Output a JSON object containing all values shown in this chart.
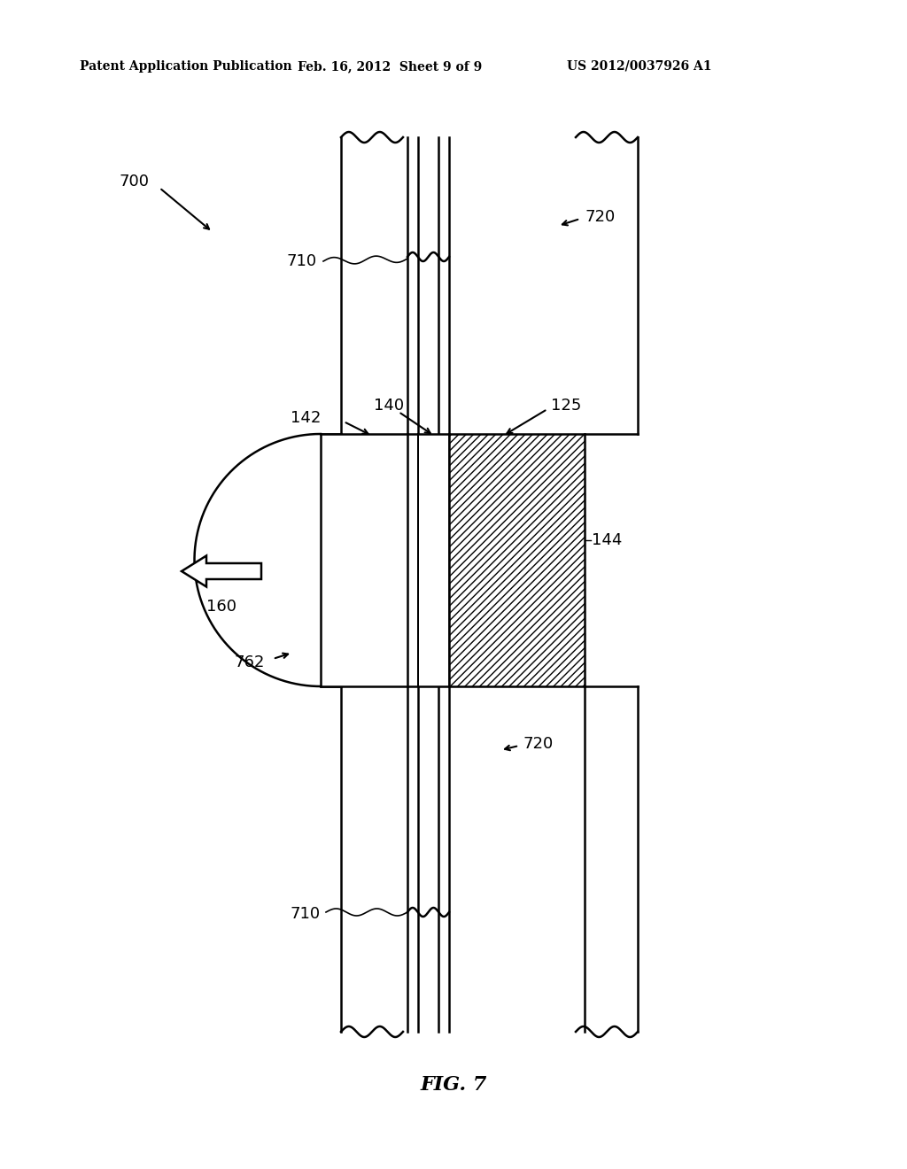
{
  "bg_color": "#ffffff",
  "header_left": "Patent Application Publication",
  "header_mid": "Feb. 16, 2012  Sheet 9 of 9",
  "header_right": "US 2012/0037926 A1",
  "fig_label": "FIG. 7"
}
